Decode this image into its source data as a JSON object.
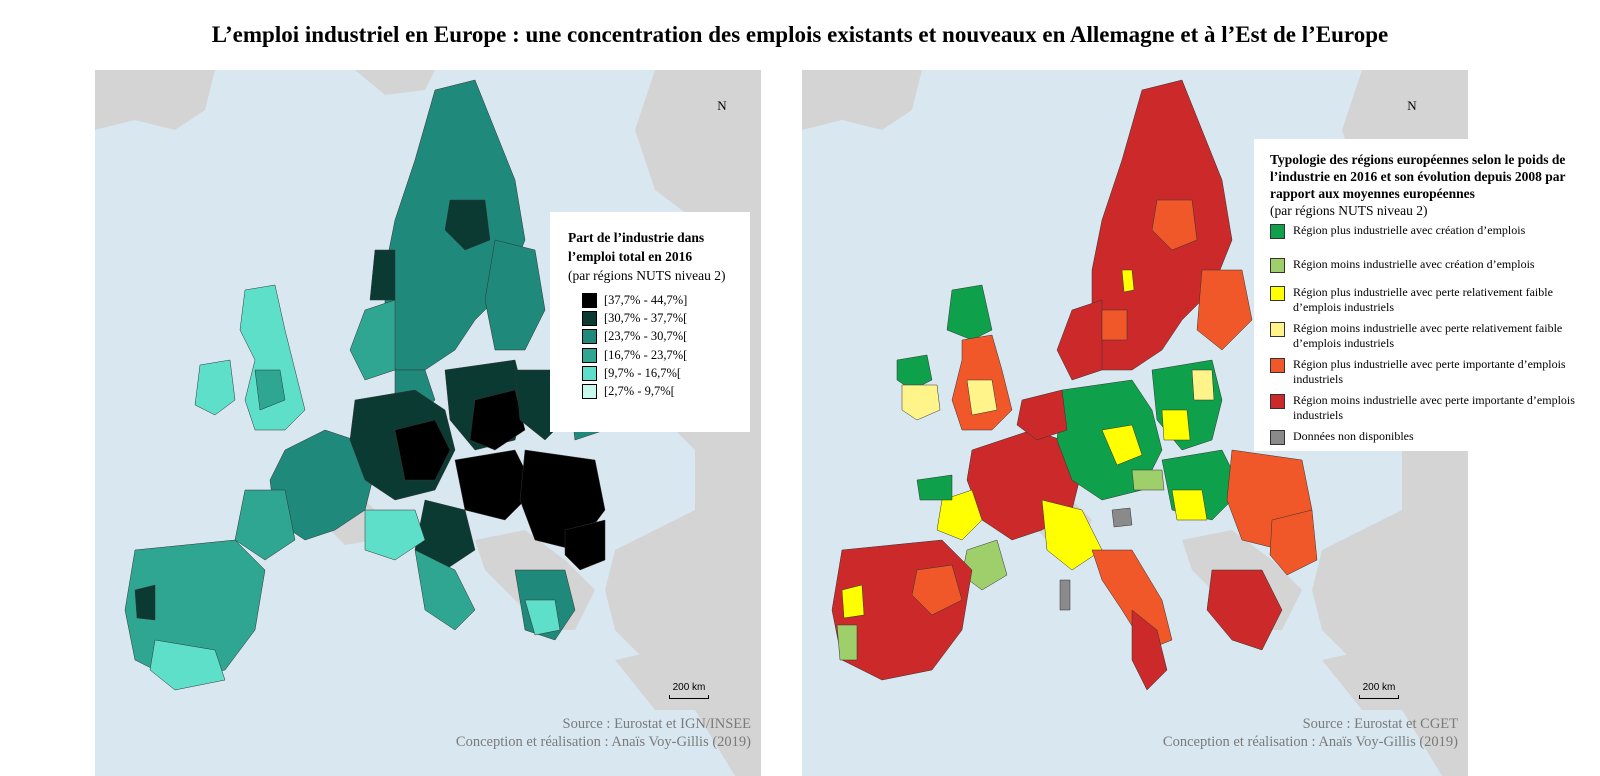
{
  "title": "L’emploi industriel en Europe : une concentration des emplois existants et nouveaux en Allemagne et à l’Est de l’Europe",
  "colors": {
    "sea": "#d9e8f0",
    "land_non_eu": "#d4d4d4",
    "teal_1": "#000000",
    "teal_2": "#0b3a33",
    "teal_3": "#1f8a7c",
    "teal_4": "#2fa692",
    "teal_5": "#5ddfc9",
    "teal_6": "#c8f7ee",
    "type_1": "#0ea04a",
    "type_2": "#9ecf6a",
    "type_3": "#ffff00",
    "type_4": "#fff48a",
    "type_5": "#f0582a",
    "type_6": "#cc2a2a",
    "type_7": "#8a8a8a"
  },
  "left_map": {
    "north_label": "N",
    "scale_label": "200 km",
    "legend": {
      "title": "Part de l’industrie dans l’emploi total en 2016",
      "subtitle": "(par régions NUTS niveau 2)",
      "items": [
        {
          "label": "[37,7% - 44,7%]",
          "color": "#000000"
        },
        {
          "label": "[30,7% - 37,7%[",
          "color": "#0b3a33"
        },
        {
          "label": "[23,7% - 30,7%[",
          "color": "#1f8a7c"
        },
        {
          "label": "[16,7% - 23,7%[",
          "color": "#2fa692"
        },
        {
          "label": "[9,7% - 16,7%[",
          "color": "#5ddfc9"
        },
        {
          "label": "[2,7% - 9,7%[",
          "color": "#c8f7ee"
        }
      ]
    },
    "source": "Source : Eurostat et IGN/INSEE",
    "credit": "Conception et réalisation : Anaïs Voy-Gillis (2019)"
  },
  "right_map": {
    "north_label": "N",
    "scale_label": "200 km",
    "legend": {
      "title": "Typologie des régions européennes selon le poids de l’industrie en 2016 et son évolution depuis 2008 par rapport aux moyennes européennes",
      "subtitle": "(par régions NUTS niveau 2)",
      "items": [
        {
          "label": "Région plus industrielle avec création d’emplois",
          "color": "#0ea04a"
        },
        {
          "label": "Région moins industrielle avec création d’emplois",
          "color": "#9ecf6a"
        },
        {
          "label": "Région plus industrielle avec perte relativement faible d’emplois industriels",
          "color": "#ffff00"
        },
        {
          "label": "Région moins industrielle avec perte relativement faible d’emplois industriels",
          "color": "#fff48a"
        },
        {
          "label": "Région plus industrielle avec perte importante d’emplois industriels",
          "color": "#f0582a"
        },
        {
          "label": "Région moins industrielle avec perte importante d’emplois industriels",
          "color": "#cc2a2a"
        },
        {
          "label": "Données non disponibles",
          "color": "#8a8a8a"
        }
      ]
    },
    "source": "Source : Eurostat et CGET",
    "credit": "Conception et réalisation : Anaïs Voy-Gillis (2019)"
  }
}
